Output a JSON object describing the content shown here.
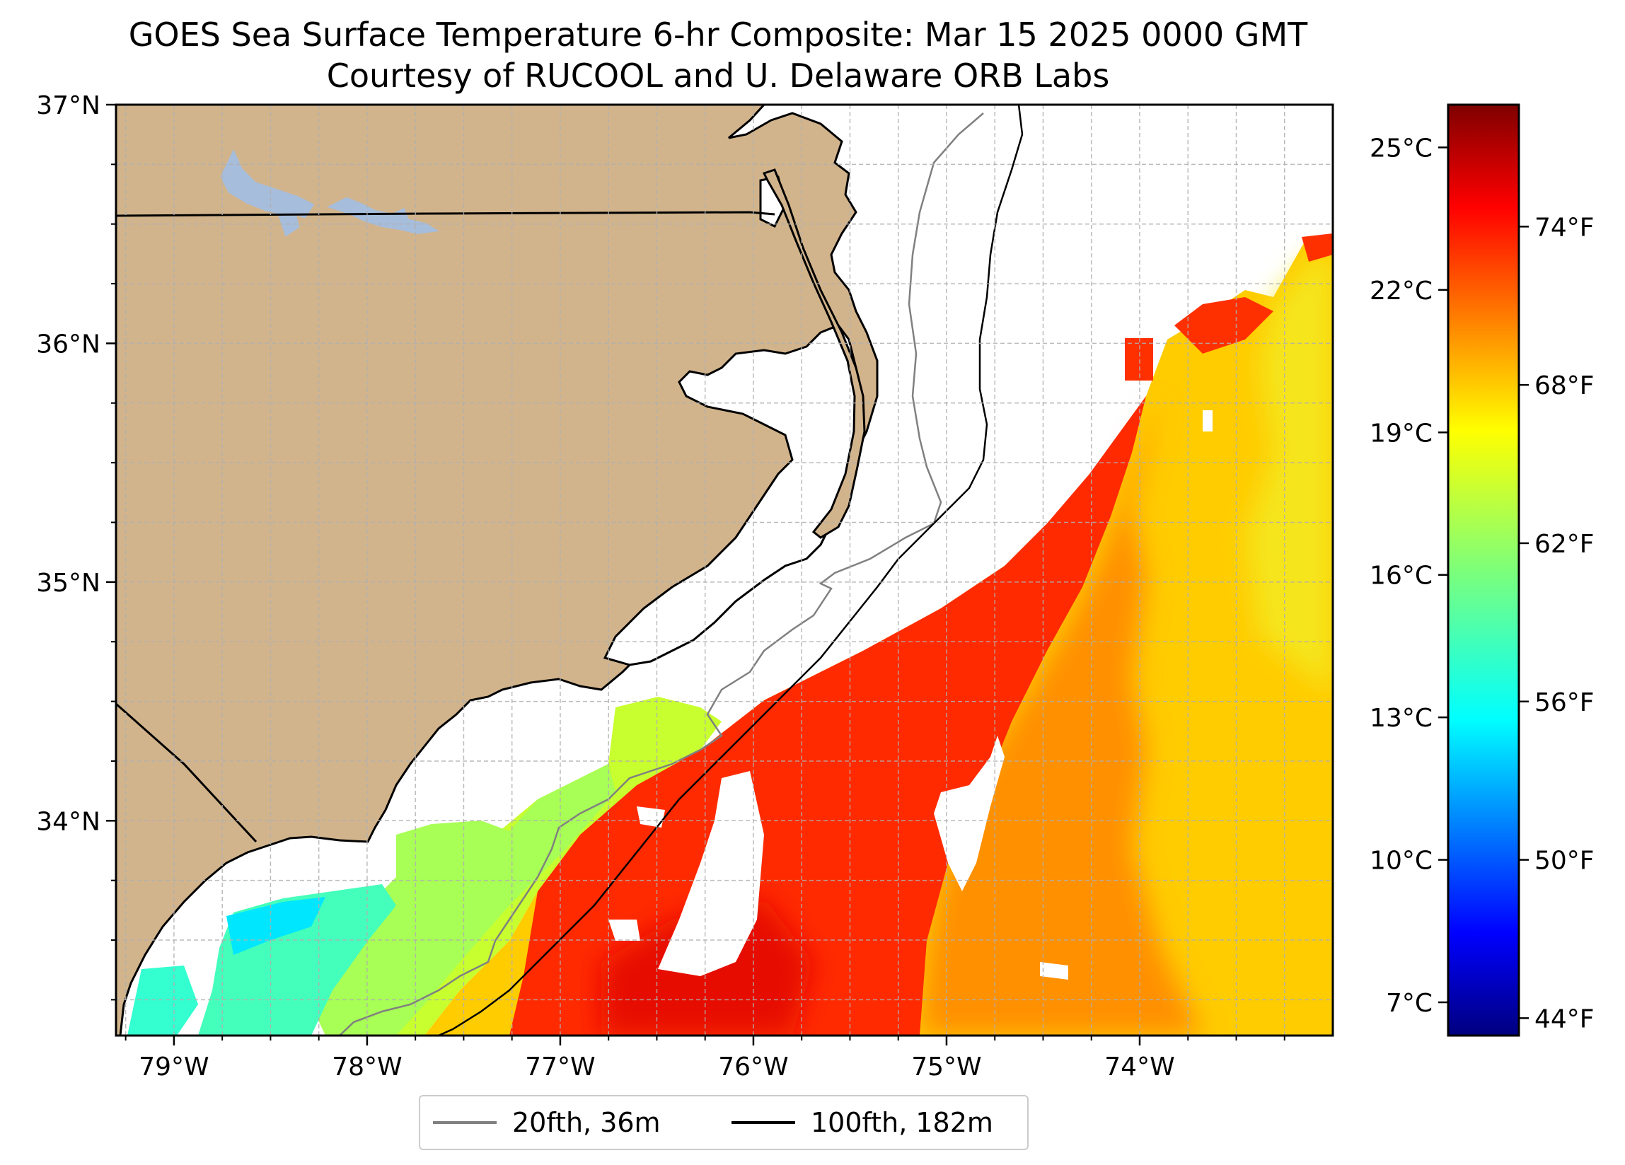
{
  "title": {
    "line1": "GOES Sea Surface Temperature 6-hr Composite: Mar 15 2025 0000 GMT",
    "line2": "Courtesy of RUCOOL and U. Delaware ORB Labs"
  },
  "map": {
    "lon_min": -79.3,
    "lon_max": -73.0,
    "lat_min": 33.1,
    "lat_max": 37.0,
    "lon_ticks": [
      {
        "value": -79,
        "label": "79°W"
      },
      {
        "value": -78,
        "label": "78°W"
      },
      {
        "value": -77,
        "label": "77°W"
      },
      {
        "value": -76,
        "label": "76°W"
      },
      {
        "value": -75,
        "label": "75°W"
      },
      {
        "value": -74,
        "label": "74°W"
      }
    ],
    "lat_ticks": [
      {
        "value": 37,
        "label": "37°N"
      },
      {
        "value": 36,
        "label": "36°N"
      },
      {
        "value": 35,
        "label": "35°N"
      },
      {
        "value": 34,
        "label": "34°N"
      }
    ],
    "grid": true,
    "colors": {
      "land": "#d2b48c",
      "lakes": "#a6bddb",
      "coast": "#000000",
      "isobath_20": "#808080",
      "isobath_100": "#000000",
      "grid": "#b0b0b0"
    },
    "places_lakes": [
      "Kerr Lake",
      "Lake Gaston"
    ]
  },
  "colorbar": {
    "colormap": "jet",
    "vmin_c": 6.3,
    "vmax_c": 25.9,
    "celsius_ticks": [
      {
        "value": 25,
        "label": "25°C"
      },
      {
        "value": 22,
        "label": "22°C"
      },
      {
        "value": 19,
        "label": "19°C"
      },
      {
        "value": 16,
        "label": "16°C"
      },
      {
        "value": 13,
        "label": "13°C"
      },
      {
        "value": 10,
        "label": "10°C"
      },
      {
        "value": 7,
        "label": "7°C"
      }
    ],
    "fahrenheit_ticks": [
      {
        "value": 74,
        "label": "74°F"
      },
      {
        "value": 68,
        "label": "68°F"
      },
      {
        "value": 62,
        "label": "62°F"
      },
      {
        "value": 56,
        "label": "56°F"
      },
      {
        "value": 50,
        "label": "50°F"
      },
      {
        "value": 44,
        "label": "44°F"
      }
    ]
  },
  "legend": {
    "items": [
      {
        "label": "20fth, 36m",
        "color": "#808080"
      },
      {
        "label": "100fth, 182m",
        "color": "#000000"
      }
    ]
  }
}
